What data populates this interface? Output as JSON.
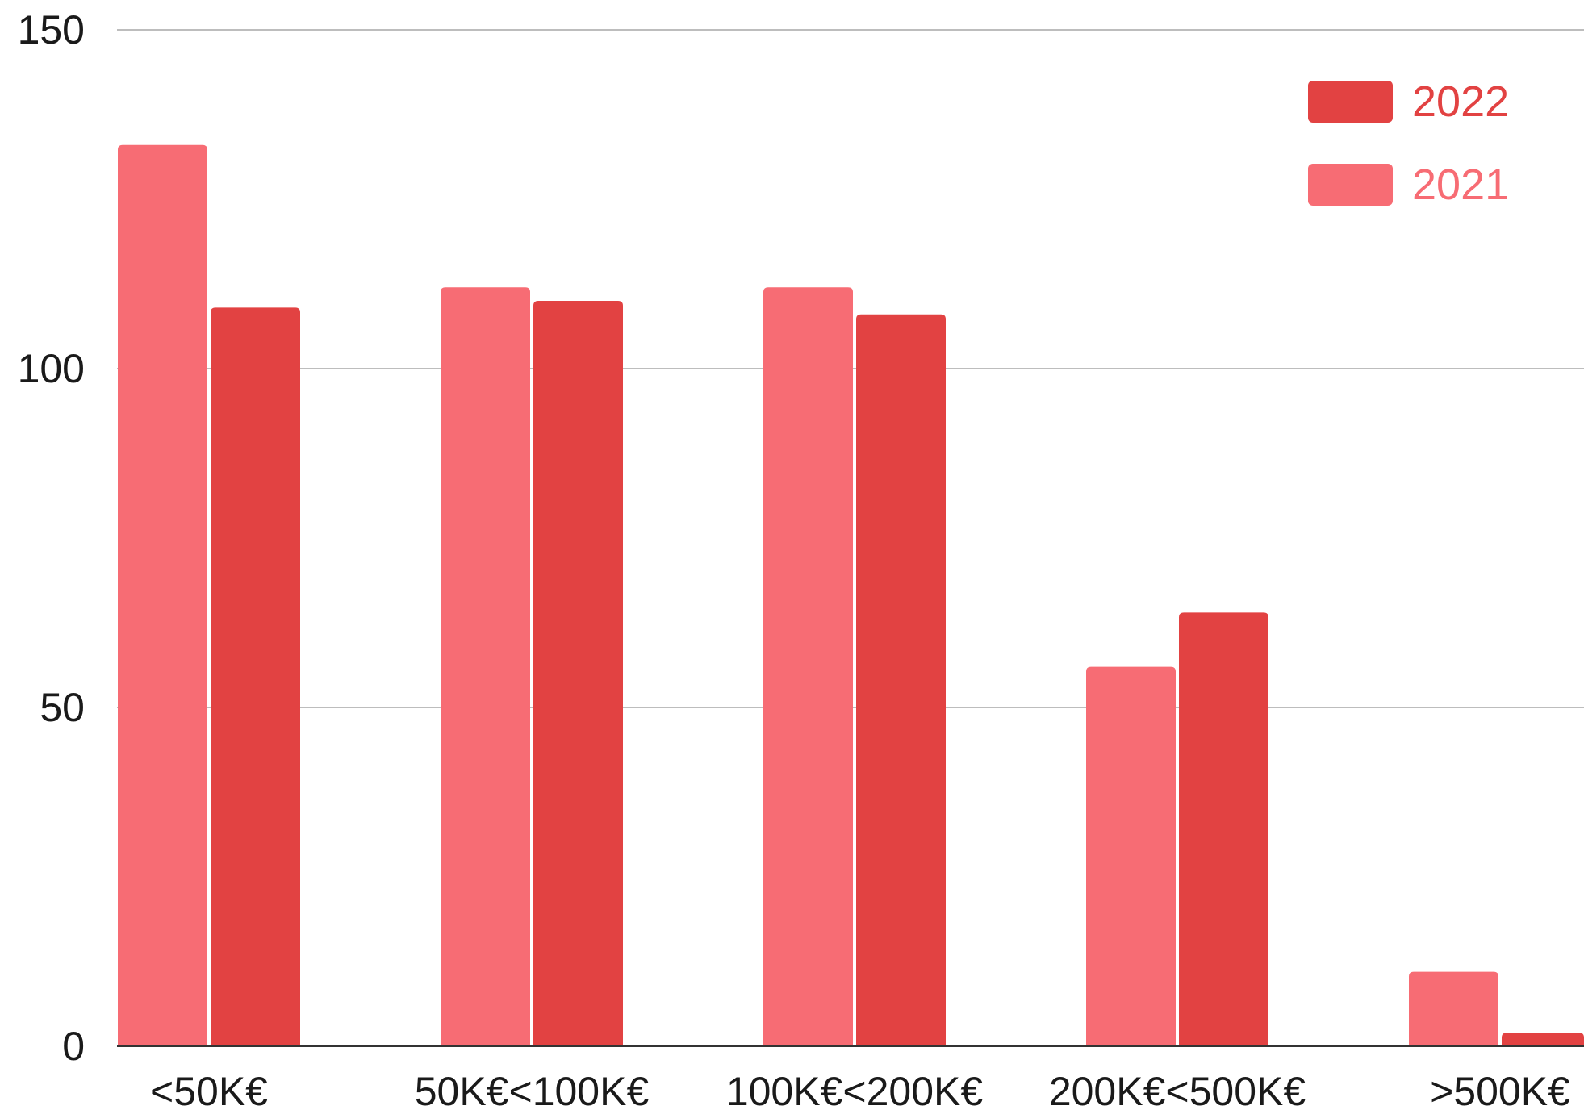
{
  "chart_data": {
    "type": "bar",
    "categories": [
      "<50K€",
      "50K€<100K€",
      "100K€<200K€",
      "200K€<500K€",
      ">500K€"
    ],
    "series": [
      {
        "name": "2021",
        "color": "#F76C74",
        "values": [
          133,
          112,
          112,
          56,
          11
        ]
      },
      {
        "name": "2022",
        "color": "#E24242",
        "values": [
          109,
          110,
          108,
          64,
          2
        ]
      }
    ],
    "legend_order": [
      "2022",
      "2021"
    ],
    "ylim": [
      0,
      150
    ],
    "yticks": [
      0,
      50,
      100,
      150
    ],
    "ytick_labels": [
      "0",
      "50",
      "100",
      "150"
    ],
    "grid": true,
    "legend_position": "top-right",
    "xlabel": "",
    "ylabel": "",
    "title": ""
  }
}
